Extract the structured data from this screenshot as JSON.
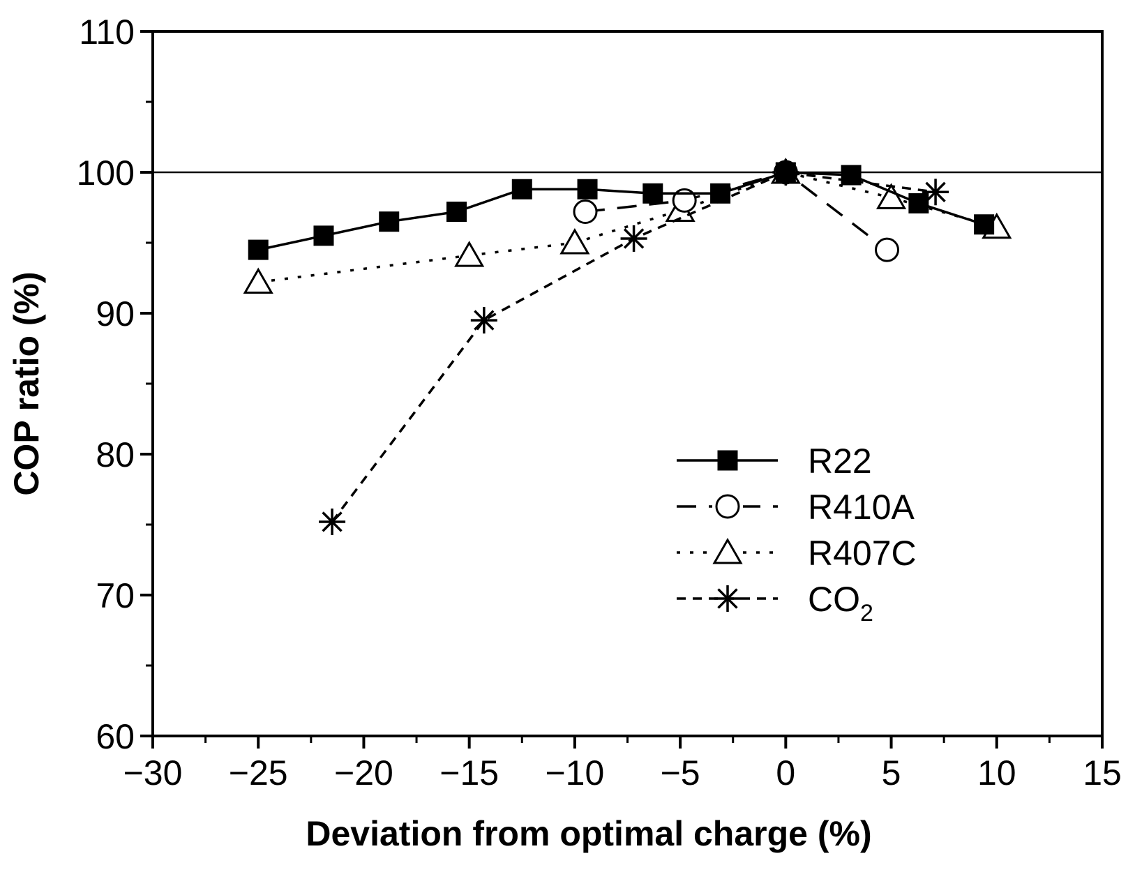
{
  "chart_data": {
    "type": "line",
    "title": "",
    "xlabel": "Deviation from optimal charge (%)",
    "ylabel": "COP ratio (%)",
    "xlim": [
      -30,
      15
    ],
    "ylim": [
      60,
      110
    ],
    "xticks": [
      -30,
      -25,
      -20,
      -15,
      -10,
      -5,
      0,
      5,
      10,
      15
    ],
    "xtick_labels": [
      "−30",
      "−25",
      "−20",
      "−15",
      "−10",
      "−5",
      "0",
      "5",
      "10",
      "15"
    ],
    "yticks": [
      60,
      70,
      80,
      90,
      100,
      110
    ],
    "ytick_labels": [
      "60",
      "70",
      "80",
      "90",
      "100",
      "110"
    ],
    "reference_line": 100,
    "legend_position": "center-right",
    "series": [
      {
        "name": "R22",
        "legend_text": "R22",
        "marker": "filled-square",
        "line_style": "solid",
        "x": [
          -25,
          -21.9,
          -18.8,
          -15.6,
          -12.5,
          -9.4,
          -6.3,
          -3.1,
          0,
          3.1,
          6.3,
          9.4
        ],
        "y": [
          94.5,
          95.5,
          96.5,
          97.2,
          98.8,
          98.8,
          98.5,
          98.5,
          100,
          99.8,
          97.8,
          96.3
        ]
      },
      {
        "name": "R410A",
        "legend_text": "R410A",
        "marker": "open-circle",
        "line_style": "long-dash",
        "x": [
          -9.5,
          -4.8,
          0,
          4.8
        ],
        "y": [
          97.2,
          98.0,
          100,
          94.5
        ]
      },
      {
        "name": "R407C",
        "legend_text": "R407C",
        "marker": "open-triangle",
        "line_style": "dotted",
        "x": [
          -25,
          -15,
          -10,
          -5,
          0,
          5,
          10
        ],
        "y": [
          92.2,
          94.1,
          95.0,
          97.3,
          100,
          98.2,
          96.1
        ]
      },
      {
        "name": "CO2",
        "legend_text": "CO",
        "legend_subscript": "2",
        "marker": "asterisk",
        "line_style": "dashed",
        "x": [
          -21.5,
          -14.3,
          -7.2,
          0,
          7.1
        ],
        "y": [
          75.2,
          89.5,
          95.3,
          100,
          98.6
        ]
      }
    ]
  }
}
